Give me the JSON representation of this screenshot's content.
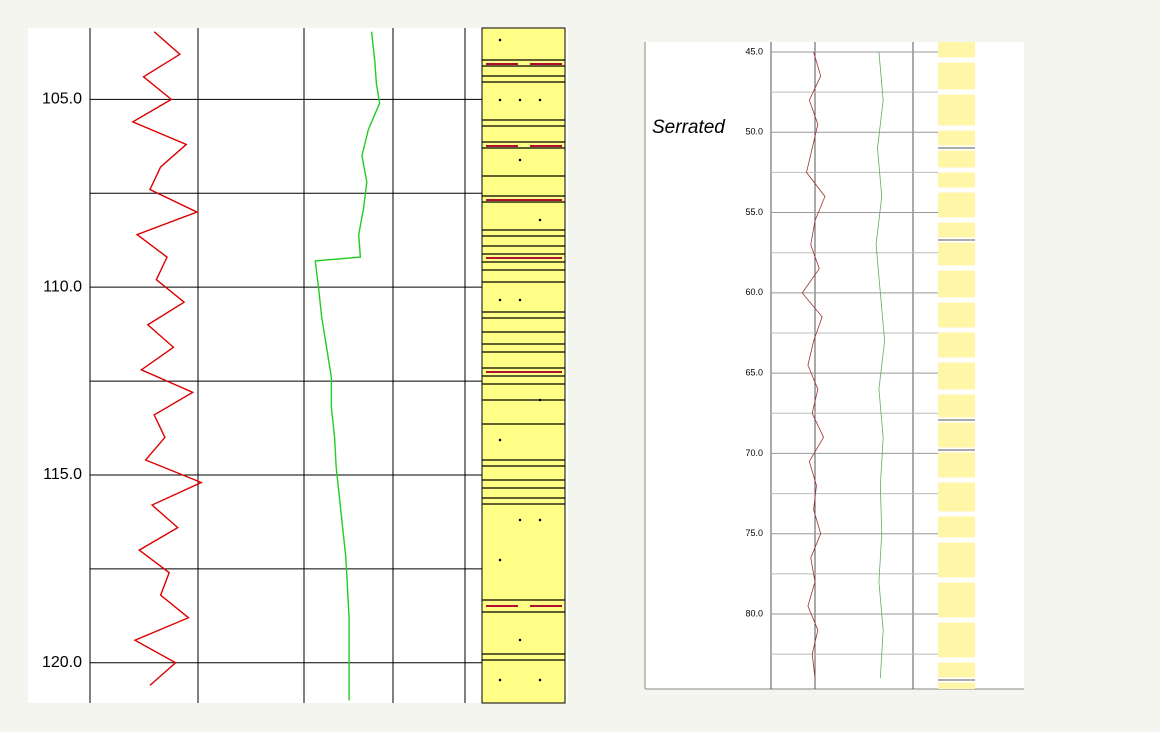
{
  "chart_data": [
    {
      "type": "well_log",
      "ylim": [
        103.1,
        121.07
      ],
      "yticks": [
        {
          "value": 105,
          "label": "105.0"
        },
        {
          "value": 110,
          "label": "110.0"
        },
        {
          "value": 115,
          "label": "115.0"
        },
        {
          "value": 120,
          "label": "120.0"
        }
      ],
      "minor_yticks": [
        107.5,
        112.5,
        117.5
      ],
      "series": [
        {
          "color": "#dd0000",
          "xlim": [
            0,
            100
          ],
          "depths": [
            103.2,
            103.8,
            104.4,
            105.0,
            105.6,
            106.2,
            106.8,
            107.4,
            108.0,
            108.6,
            109.2,
            109.8,
            110.4,
            111.0,
            111.6,
            112.2,
            112.8,
            113.4,
            114.0,
            114.6,
            115.2,
            115.8,
            116.4,
            117.0,
            117.6,
            118.2,
            118.8,
            119.4,
            120.0,
            120.6
          ],
          "values": [
            30,
            42,
            25,
            38,
            20,
            45,
            33,
            28,
            50,
            22,
            36,
            31,
            44,
            27,
            39,
            24,
            48,
            30,
            35,
            26,
            52,
            29,
            41,
            23,
            37,
            33,
            46,
            21,
            40,
            28
          ]
        },
        {
          "color": "#22cc22",
          "xlim": [
            0,
            100
          ],
          "track": 2,
          "depths": [
            103.2,
            104.0,
            104.6,
            105.1,
            105.8,
            106.5,
            107.2,
            107.9,
            108.6,
            109.2,
            109.3,
            110.0,
            110.8,
            111.6,
            112.4,
            113.2,
            114.0,
            114.8,
            115.6,
            116.4,
            117.2,
            118.0,
            118.8,
            119.6,
            120.4,
            121.0
          ],
          "values": [
            42,
            44,
            45,
            47,
            40,
            36,
            39,
            37,
            34,
            35,
            7,
            9,
            11,
            14,
            17,
            17,
            19,
            20,
            22,
            24,
            26,
            27,
            28,
            28,
            28,
            28
          ]
        }
      ]
    },
    {
      "type": "well_log",
      "annotation": "Serrated",
      "ylim": [
        44.38,
        84.67
      ],
      "yticks": [
        {
          "value": 45,
          "label": "45.0"
        },
        {
          "value": 50,
          "label": "50.0"
        },
        {
          "value": 55,
          "label": "55.0"
        },
        {
          "value": 60,
          "label": "60.0"
        },
        {
          "value": 65,
          "label": "65.0"
        },
        {
          "value": 70,
          "label": "70.0"
        },
        {
          "value": 75,
          "label": "75.0"
        },
        {
          "value": 80,
          "label": "80.0"
        }
      ],
      "minor_yticks": [
        47.5,
        52.5,
        57.5,
        62.5,
        67.5,
        72.5,
        77.5,
        82.5
      ],
      "series": [
        {
          "color": "#993333",
          "xlim": [
            0,
            100
          ],
          "depths": [
            45,
            46.5,
            48,
            49.5,
            51,
            52.5,
            54,
            55.5,
            57,
            58.5,
            60,
            61.5,
            63,
            64.5,
            66,
            67.5,
            69,
            70.5,
            72,
            73.5,
            75,
            76.5,
            78,
            79.5,
            81,
            82.5,
            84
          ],
          "values": [
            30,
            35,
            27,
            33,
            29,
            25,
            38,
            31,
            28,
            34,
            22,
            36,
            30,
            26,
            33,
            29,
            37,
            27,
            32,
            30,
            35,
            28,
            31,
            26,
            33,
            29,
            31
          ]
        },
        {
          "color": "#66aa66",
          "xlim": [
            0,
            100
          ],
          "depths": [
            45,
            48,
            51,
            54,
            57,
            60,
            63,
            66,
            69,
            72,
            75,
            78,
            81,
            84
          ],
          "values": [
            76,
            79,
            75,
            78,
            74,
            77,
            80,
            76,
            79,
            77,
            78,
            76,
            79,
            77
          ]
        }
      ]
    }
  ]
}
